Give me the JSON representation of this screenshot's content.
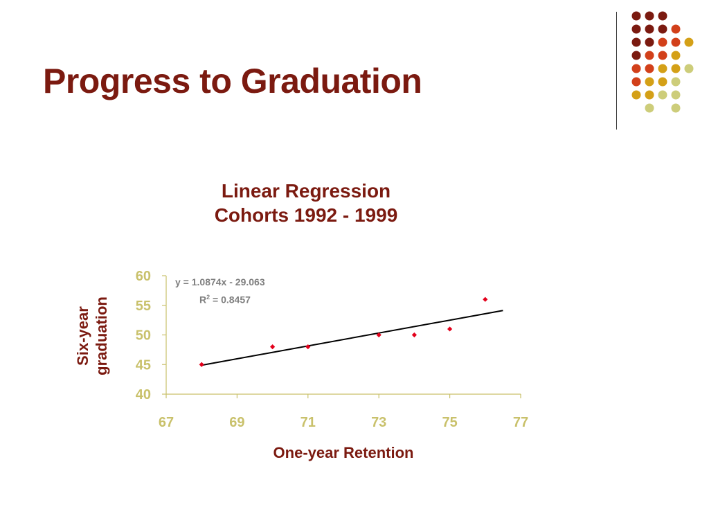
{
  "slide": {
    "title": "Progress to Graduation"
  },
  "decoration": {
    "dot_colors": [
      "#7b1a10",
      "#d2401a",
      "#d4a017",
      "#cdcd7a"
    ],
    "dot_rows": [
      [
        0,
        0,
        0,
        -1,
        -1
      ],
      [
        0,
        0,
        0,
        1,
        -1
      ],
      [
        0,
        0,
        1,
        1,
        2
      ],
      [
        0,
        1,
        1,
        2,
        -1
      ],
      [
        1,
        1,
        2,
        2,
        3
      ],
      [
        1,
        2,
        2,
        3,
        -1
      ],
      [
        2,
        2,
        3,
        3,
        -1
      ],
      [
        -1,
        3,
        -1,
        3,
        -1
      ]
    ]
  },
  "chart_data": {
    "type": "scatter",
    "title": "Linear Regression",
    "subtitle": "Cohorts 1992 - 1999",
    "xlabel": "One-year Retention",
    "ylabel": [
      "Six-year",
      "graduation"
    ],
    "xlim": [
      67,
      77
    ],
    "ylim": [
      40,
      60
    ],
    "xticks": [
      67,
      69,
      71,
      73,
      75,
      77
    ],
    "yticks": [
      40,
      45,
      50,
      55,
      60
    ],
    "series": [
      {
        "points": [
          [
            68,
            45
          ],
          [
            70,
            48
          ],
          [
            71,
            48
          ],
          [
            73,
            50
          ],
          [
            74,
            50
          ],
          [
            75,
            51
          ],
          [
            76,
            56
          ]
        ],
        "color": "#e3001b"
      }
    ],
    "trendline": {
      "x_range": [
        68,
        76.5
      ],
      "slope": 1.0874,
      "intercept": -29.063,
      "equation_prefix": "y = 1.0874x - 29.063",
      "r2_prefix": "R",
      "r2_sup": "2",
      "r2_suffix": " = 0.8457",
      "color": "#000000"
    },
    "grid": false,
    "colors": {
      "axis_text": "#c9c16b",
      "titles": "#7b1a10",
      "axis_line": "#c9c16b"
    }
  }
}
